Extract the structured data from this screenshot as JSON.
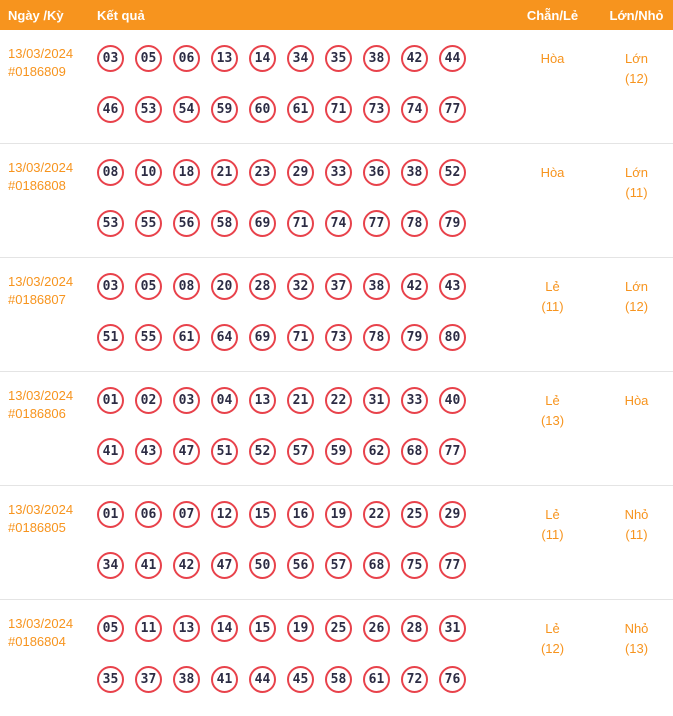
{
  "header": {
    "date_label": "Ngày /Kỳ",
    "result_label": "Kết quả",
    "even_odd_label": "Chẵn/Lẻ",
    "big_small_label": "Lớn/Nhỏ"
  },
  "colors": {
    "accent_orange": "#f7941e",
    "ball_border": "#e8424b",
    "ball_text": "#2c2c44"
  },
  "rows": [
    {
      "date": "13/03/2024",
      "draw_id": "#0186809",
      "numbers_line1": [
        "03",
        "05",
        "06",
        "13",
        "14",
        "34",
        "35",
        "38",
        "42",
        "44"
      ],
      "numbers_line2": [
        "46",
        "53",
        "54",
        "59",
        "60",
        "61",
        "71",
        "73",
        "74",
        "77"
      ],
      "even_odd_lines": [
        "Hòa"
      ],
      "big_small_lines": [
        "Lớn",
        "(12)"
      ]
    },
    {
      "date": "13/03/2024",
      "draw_id": "#0186808",
      "numbers_line1": [
        "08",
        "10",
        "18",
        "21",
        "23",
        "29",
        "33",
        "36",
        "38",
        "52"
      ],
      "numbers_line2": [
        "53",
        "55",
        "56",
        "58",
        "69",
        "71",
        "74",
        "77",
        "78",
        "79"
      ],
      "even_odd_lines": [
        "Hòa"
      ],
      "big_small_lines": [
        "Lớn",
        "(11)"
      ]
    },
    {
      "date": "13/03/2024",
      "draw_id": "#0186807",
      "numbers_line1": [
        "03",
        "05",
        "08",
        "20",
        "28",
        "32",
        "37",
        "38",
        "42",
        "43"
      ],
      "numbers_line2": [
        "51",
        "55",
        "61",
        "64",
        "69",
        "71",
        "73",
        "78",
        "79",
        "80"
      ],
      "even_odd_lines": [
        "Lẻ",
        "(11)"
      ],
      "big_small_lines": [
        "Lớn",
        "(12)"
      ]
    },
    {
      "date": "13/03/2024",
      "draw_id": "#0186806",
      "numbers_line1": [
        "01",
        "02",
        "03",
        "04",
        "13",
        "21",
        "22",
        "31",
        "33",
        "40"
      ],
      "numbers_line2": [
        "41",
        "43",
        "47",
        "51",
        "52",
        "57",
        "59",
        "62",
        "68",
        "77"
      ],
      "even_odd_lines": [
        "Lẻ",
        "(13)"
      ],
      "big_small_lines": [
        "Hòa"
      ]
    },
    {
      "date": "13/03/2024",
      "draw_id": "#0186805",
      "numbers_line1": [
        "01",
        "06",
        "07",
        "12",
        "15",
        "16",
        "19",
        "22",
        "25",
        "29"
      ],
      "numbers_line2": [
        "34",
        "41",
        "42",
        "47",
        "50",
        "56",
        "57",
        "68",
        "75",
        "77"
      ],
      "even_odd_lines": [
        "Lẻ",
        "(11)"
      ],
      "big_small_lines": [
        "Nhỏ",
        "(11)"
      ]
    },
    {
      "date": "13/03/2024",
      "draw_id": "#0186804",
      "numbers_line1": [
        "05",
        "11",
        "13",
        "14",
        "15",
        "19",
        "25",
        "26",
        "28",
        "31"
      ],
      "numbers_line2": [
        "35",
        "37",
        "38",
        "41",
        "44",
        "45",
        "58",
        "61",
        "72",
        "76"
      ],
      "even_odd_lines": [
        "Lẻ",
        "(12)"
      ],
      "big_small_lines": [
        "Nhỏ",
        "(13)"
      ]
    }
  ]
}
